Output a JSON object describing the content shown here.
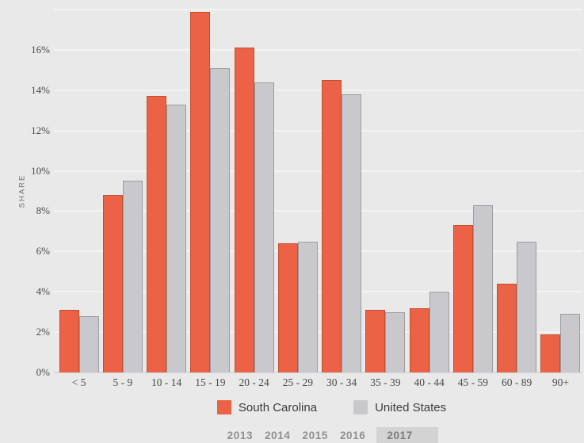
{
  "chart": {
    "y_axis_title": "SHARE"
  },
  "chart_data": {
    "type": "bar",
    "title": "",
    "xlabel": "",
    "ylabel": "SHARE",
    "categories": [
      "< 5",
      "5 - 9",
      "10 - 14",
      "15 - 19",
      "20 - 24",
      "25 - 29",
      "30 - 34",
      "35 - 39",
      "40 - 44",
      "45 - 59",
      "60 - 89",
      "90+"
    ],
    "series": [
      {
        "name": "South Carolina",
        "color": "#ec6246",
        "border_color": "#c0502e",
        "values": [
          3.1,
          8.8,
          13.7,
          17.9,
          16.1,
          6.4,
          14.5,
          3.1,
          3.2,
          7.3,
          4.4,
          1.9
        ]
      },
      {
        "name": "United States",
        "color": "#c9c9cd",
        "border_color": "#9d9da1",
        "values": [
          2.8,
          9.5,
          13.3,
          15.1,
          14.4,
          6.5,
          13.8,
          3.0,
          4.0,
          8.3,
          6.5,
          2.9
        ]
      }
    ],
    "ylim": [
      0,
      18
    ],
    "ytick_step": 2,
    "ytick_suffix": "%",
    "ytick_label_max": 16,
    "grid": true,
    "legend_position": "bottom"
  },
  "tabs": {
    "items": [
      "2013",
      "2014",
      "2015",
      "2016",
      "2017"
    ],
    "active": "2017"
  },
  "colors": {
    "background": "#e9e9e9",
    "gridline": "#f3f3f3",
    "axis_line": "#dadada",
    "tick_text": "#4a4a4a",
    "tab_active_bg": "#d3d3d3"
  }
}
